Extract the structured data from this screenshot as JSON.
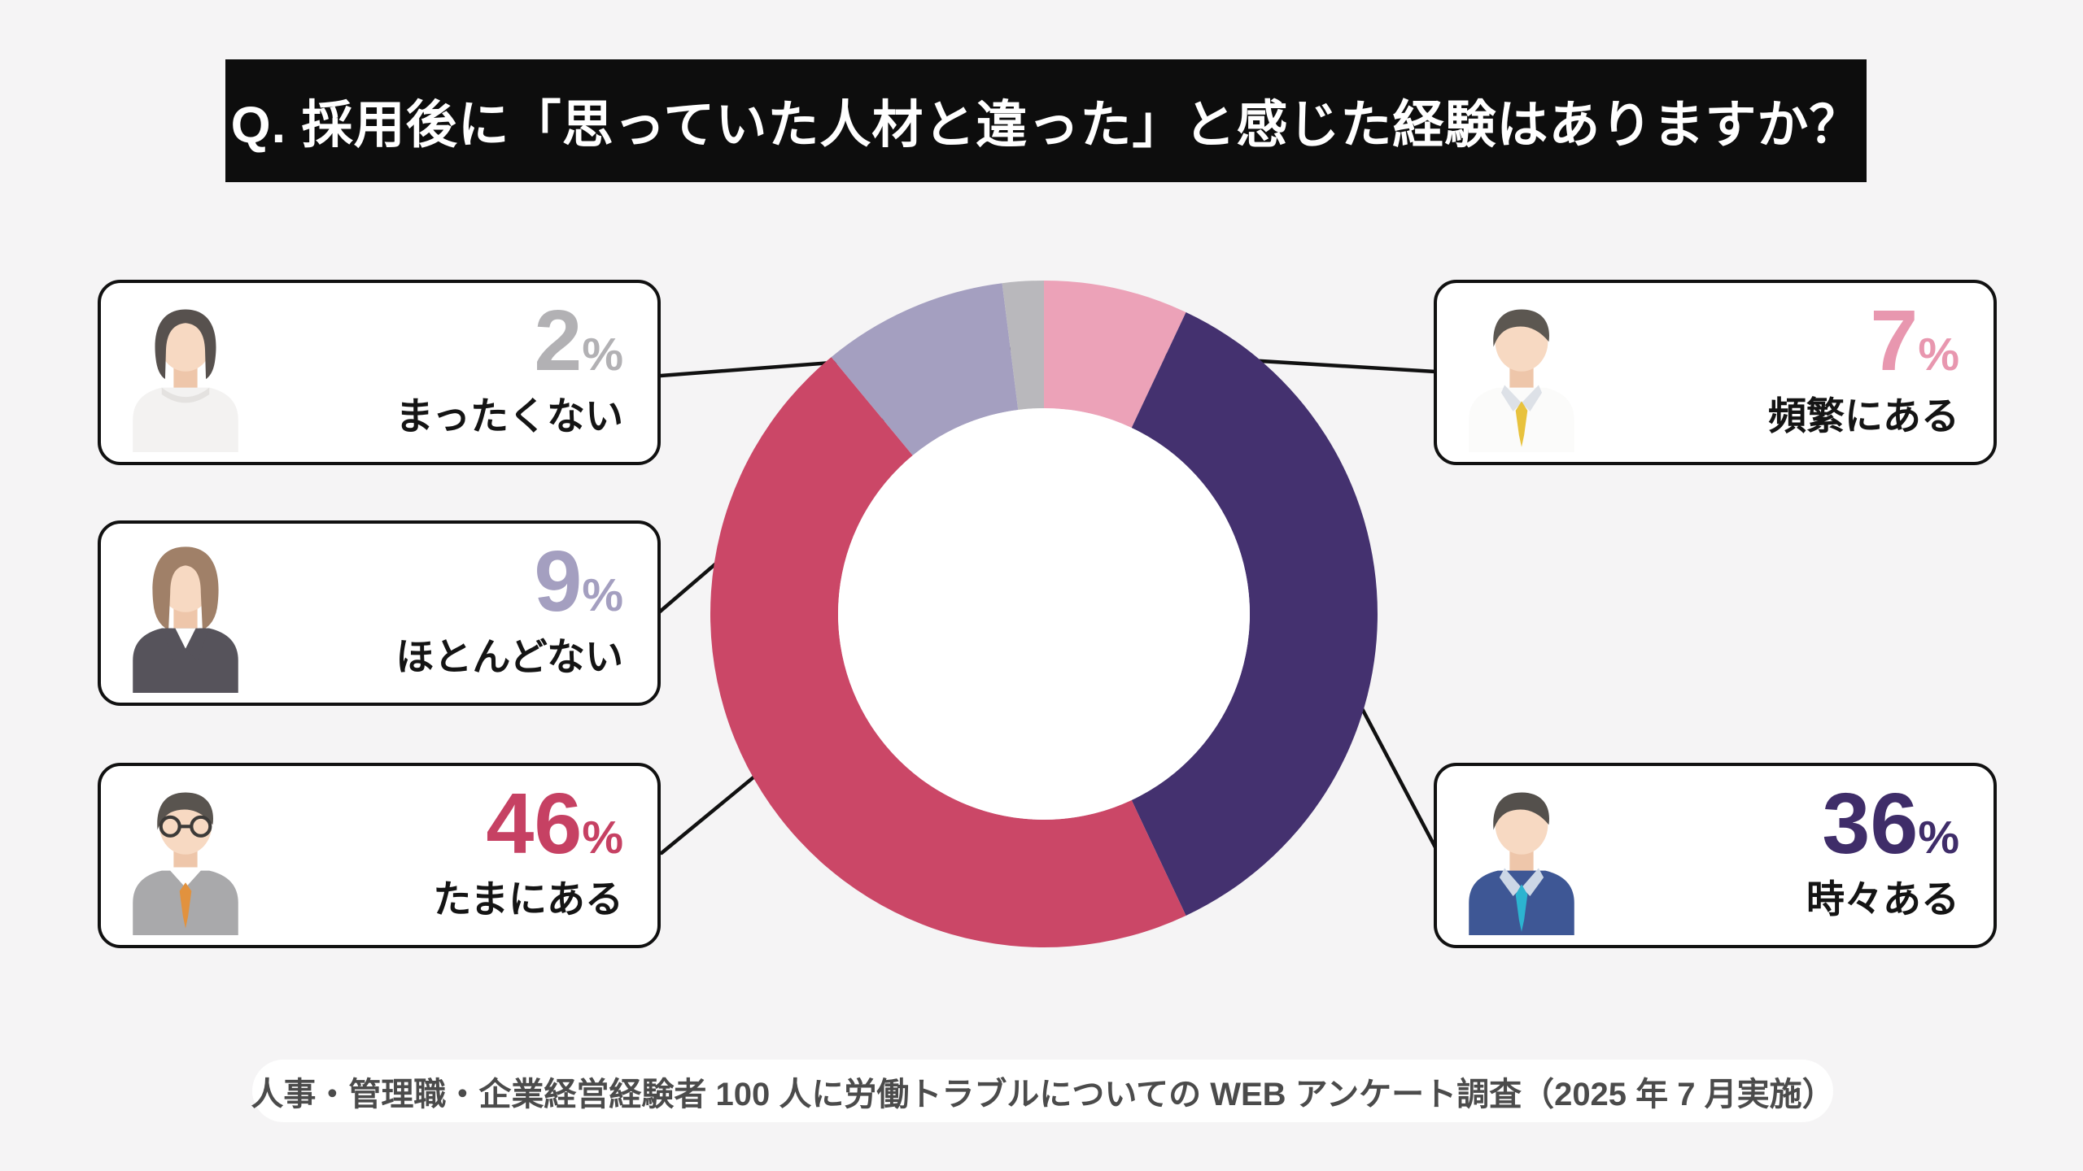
{
  "title": "Q. 採用後に「思っていた人材と違った」と感じた経験はありますか？",
  "source_note": "人事・管理職・企業経営経験者 100 人に労働トラブルについての WEB アンケート調査（2025 年 7 月実施）",
  "percent_suffix": "%",
  "colors": {
    "background": "#f5f4f5",
    "title_bar_bg": "#0d0d0d",
    "title_text": "#ffffff",
    "card_bg": "#ffffff",
    "card_border": "#111111",
    "leader_line": "#111111",
    "answer_text": "#141414",
    "source_text": "#4b4b4b",
    "donut_hole": "#ffffff"
  },
  "chart_data": {
    "type": "pie",
    "donut": true,
    "title": "Q. 採用後に「思っていた人材と違った」と感じた経験はありますか？",
    "units": "%",
    "total": 100,
    "start_angle_deg": 0,
    "direction": "clockwise",
    "segments": [
      {
        "label": "頻繁にある",
        "value": 7,
        "color": "#eca2b8"
      },
      {
        "label": "時々ある",
        "value": 36,
        "color": "#44316f"
      },
      {
        "label": "たまにある",
        "value": 46,
        "color": "#cb4767"
      },
      {
        "label": "ほとんどない",
        "value": 9,
        "color": "#a49fc0"
      },
      {
        "label": "まったくない",
        "value": 2,
        "color": "#b9b8bc"
      }
    ]
  },
  "cards": [
    {
      "id": "mattaku-nai",
      "value": "2",
      "label": "まったくない",
      "accent": "#b2b1b4",
      "avatar": "woman-short-hair"
    },
    {
      "id": "hotondo-nai",
      "value": "9",
      "label": "ほとんどない",
      "accent": "#a49fc0",
      "avatar": "woman-bob-hair"
    },
    {
      "id": "tama-ni-aru",
      "value": "46",
      "label": "たまにある",
      "accent": "#c64163",
      "avatar": "man-glasses-gray-suit"
    },
    {
      "id": "hinpan-ni-aru",
      "value": "7",
      "label": "頻繁にある",
      "accent": "#e897af",
      "avatar": "man-white-shirt-yellow-tie"
    },
    {
      "id": "tokidoki-aru",
      "value": "36",
      "label": "時々ある",
      "accent": "#3f2d69",
      "avatar": "man-navy-suit-teal-tie"
    }
  ]
}
